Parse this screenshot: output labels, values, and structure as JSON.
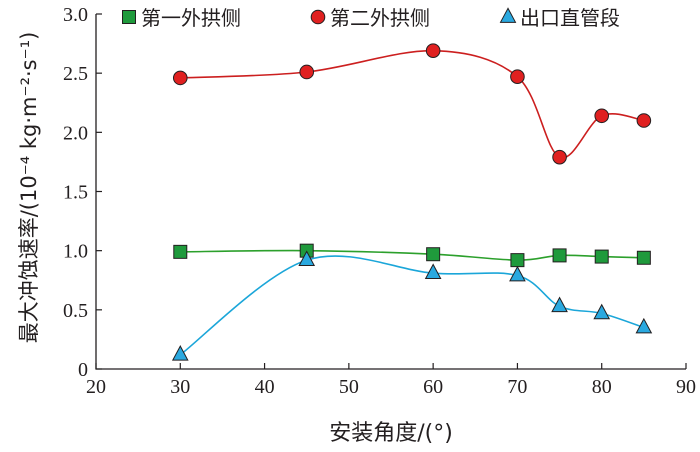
{
  "chart_data": {
    "type": "line",
    "xlabel": "安装角度/(°)",
    "ylabel": "最大冲蚀速率/(10⁻⁴ kg·m⁻²·s⁻¹)",
    "xlim": [
      20,
      90
    ],
    "ylim": [
      0,
      3.0
    ],
    "xticks": [
      "20",
      "30",
      "40",
      "50",
      "60",
      "70",
      "80",
      "90"
    ],
    "yticks": [
      "0",
      "0.5",
      "1.0",
      "1.5",
      "2.0",
      "2.5",
      "3.0"
    ],
    "grid": false,
    "legend_position": "top",
    "series": [
      {
        "name": "第一外拱侧",
        "marker": "square",
        "line_color": "#2ca02c",
        "marker_color": "#1f9a3c",
        "x": [
          30,
          45,
          60,
          70,
          75,
          80,
          85
        ],
        "y": [
          0.99,
          1.0,
          0.97,
          0.92,
          0.96,
          0.95,
          0.94
        ]
      },
      {
        "name": "第二外拱侧",
        "marker": "circle",
        "line_color": "#cc1f1f",
        "marker_color": "#e02020",
        "x": [
          30,
          45,
          60,
          70,
          75,
          80,
          85
        ],
        "y": [
          2.46,
          2.51,
          2.69,
          2.47,
          1.79,
          2.14,
          2.1
        ]
      },
      {
        "name": "出口直管段",
        "marker": "triangle",
        "line_color": "#1ba6d9",
        "marker_color": "#2aa9e0",
        "x": [
          30,
          45,
          60,
          70,
          75,
          80,
          85
        ],
        "y": [
          0.12,
          0.92,
          0.81,
          0.79,
          0.53,
          0.47,
          0.35
        ]
      }
    ]
  }
}
